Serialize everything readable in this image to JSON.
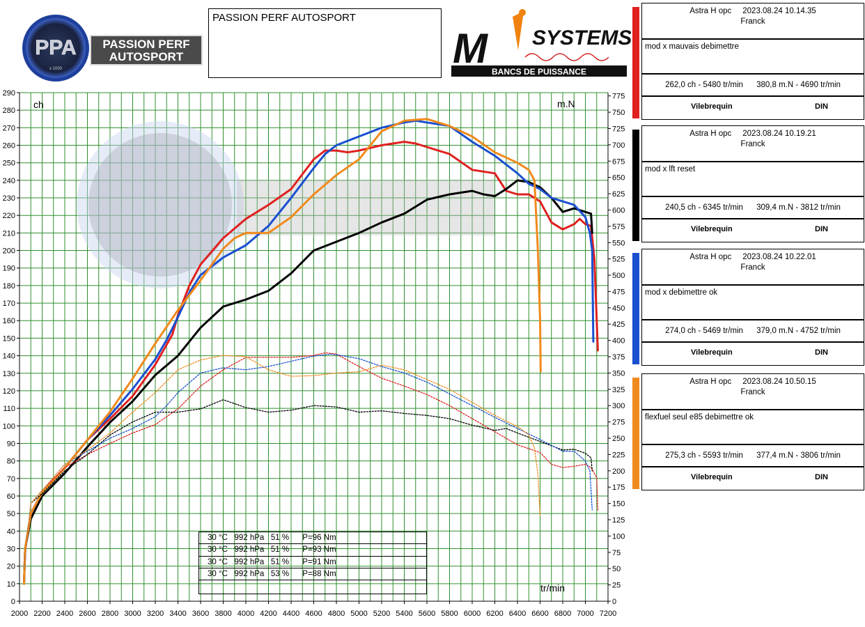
{
  "header": {
    "title_box_text": "PASSION PERF AUTOSPORT",
    "logo_left_text": [
      "PASSION PERF",
      "AUTOSPORT"
    ],
    "logo_left_abbrev": "PPA",
    "logo_left_gauge_unit": "x 1000",
    "logo_right_text": "SYSTEMS",
    "logo_right_letter": "M",
    "logo_right_sub": "BANCS DE PUISSANCE"
  },
  "legend": [
    {
      "color": "#e02020",
      "head1": "Astra H opc     2023.08.24 10.14.35",
      "head2": "Franck",
      "comment": "mod x mauvais debimettre",
      "values": "262,0 ch - 5480 tr/min      380,8 m.N - 4690 tr/min",
      "foot_left": "Vilebrequin",
      "foot_right": "DIN"
    },
    {
      "color": "#000000",
      "head1": "Astra H opc     2023.08.24 10.19.21",
      "head2": "Franck",
      "comment": "mod x lft reset",
      "values": "240,5 ch - 6345 tr/min      309,4 m.N - 3812 tr/min",
      "foot_left": "Vilebrequin",
      "foot_right": "DIN"
    },
    {
      "color": "#1a4fd0",
      "head1": "Astra H opc     2023.08.24 10.22.01",
      "head2": "Franck",
      "comment": "mod x debimettre ok",
      "values": "274,0 ch - 5469 tr/min      379,0 m.N - 4752 tr/min",
      "foot_left": "Vilebrequin",
      "foot_right": "DIN"
    },
    {
      "color": "#f08a1c",
      "head1": "Astra H opc     2023.08.24 10.50.15",
      "head2": "Franck",
      "comment": "flexfuel seul e85 debimettre ok",
      "values": "275,3 ch - 5593 tr/min      377,4 m.N - 3806 tr/min",
      "foot_left": "Vilebrequin",
      "foot_right": "DIN"
    }
  ],
  "conditions": [
    "30 °C   992 hPa   51 %      P=96 Nm",
    "30 °C   992 hPa   51 %      P=93 Nm",
    "30 °C   992 hPa   51 %      P=91 Nm",
    "30 °C   992 hPa   53 %      P=88 Nm"
  ],
  "chart_data": {
    "type": "line",
    "left_unit_label": "ch",
    "right_unit_label": "m.N",
    "x_unit_label": "tr/min",
    "xlim": [
      2000,
      7200
    ],
    "ylim_left": [
      0,
      290
    ],
    "ylim_right": [
      0,
      780
    ],
    "x_ticks": [
      2000,
      2200,
      2400,
      2600,
      2800,
      3000,
      3200,
      3400,
      3600,
      3800,
      4000,
      4200,
      4400,
      4600,
      4800,
      5000,
      5200,
      5400,
      5600,
      5800,
      6000,
      6200,
      6400,
      6600,
      6800,
      7000,
      7200
    ],
    "left_tick_step": 10,
    "right_tick_step": 25,
    "grid": true,
    "grid_color": "#2f8f2f",
    "series": [
      {
        "color": "#e02020",
        "style": "solid",
        "axis": "left",
        "points": [
          [
            2040,
            10
          ],
          [
            2050,
            30
          ],
          [
            2100,
            50
          ],
          [
            2200,
            62
          ],
          [
            2400,
            76
          ],
          [
            2600,
            92
          ],
          [
            2800,
            104
          ],
          [
            3000,
            117
          ],
          [
            3200,
            135
          ],
          [
            3350,
            152
          ],
          [
            3400,
            163
          ],
          [
            3500,
            180
          ],
          [
            3600,
            192
          ],
          [
            3800,
            207
          ],
          [
            4000,
            218
          ],
          [
            4200,
            226
          ],
          [
            4400,
            235
          ],
          [
            4600,
            252
          ],
          [
            4700,
            257
          ],
          [
            4800,
            257
          ],
          [
            4900,
            256
          ],
          [
            5000,
            257
          ],
          [
            5200,
            260
          ],
          [
            5400,
            262
          ],
          [
            5500,
            261
          ],
          [
            5600,
            259
          ],
          [
            5800,
            255
          ],
          [
            6000,
            246
          ],
          [
            6200,
            244
          ],
          [
            6300,
            234
          ],
          [
            6400,
            232
          ],
          [
            6500,
            232
          ],
          [
            6600,
            228
          ],
          [
            6700,
            216
          ],
          [
            6800,
            212
          ],
          [
            6900,
            215
          ],
          [
            6950,
            218
          ],
          [
            7000,
            215
          ],
          [
            7050,
            214
          ],
          [
            7080,
            195
          ],
          [
            7100,
            160
          ],
          [
            7110,
            143
          ]
        ]
      },
      {
        "color": "#000000",
        "style": "solid",
        "axis": "left",
        "points": [
          [
            2040,
            10
          ],
          [
            2050,
            30
          ],
          [
            2100,
            47
          ],
          [
            2200,
            60
          ],
          [
            2400,
            73
          ],
          [
            2600,
            88
          ],
          [
            2800,
            102
          ],
          [
            3000,
            114
          ],
          [
            3200,
            129
          ],
          [
            3400,
            140
          ],
          [
            3600,
            156
          ],
          [
            3800,
            168
          ],
          [
            4000,
            172
          ],
          [
            4200,
            177
          ],
          [
            4400,
            187
          ],
          [
            4600,
            200
          ],
          [
            4800,
            205
          ],
          [
            5000,
            210
          ],
          [
            5200,
            216
          ],
          [
            5400,
            221
          ],
          [
            5500,
            225
          ],
          [
            5600,
            229
          ],
          [
            5800,
            232
          ],
          [
            6000,
            234
          ],
          [
            6100,
            232
          ],
          [
            6200,
            231
          ],
          [
            6300,
            235
          ],
          [
            6400,
            240
          ],
          [
            6500,
            239
          ],
          [
            6600,
            236
          ],
          [
            6700,
            230
          ],
          [
            6800,
            222
          ],
          [
            6900,
            224
          ],
          [
            7000,
            222
          ],
          [
            7050,
            221
          ],
          [
            7060,
            210
          ]
        ]
      },
      {
        "color": "#1a4fd0",
        "style": "solid",
        "axis": "left",
        "points": [
          [
            2040,
            10
          ],
          [
            2050,
            30
          ],
          [
            2100,
            50
          ],
          [
            2200,
            62
          ],
          [
            2400,
            76
          ],
          [
            2600,
            92
          ],
          [
            2800,
            106
          ],
          [
            3000,
            121
          ],
          [
            3200,
            138
          ],
          [
            3300,
            149
          ],
          [
            3400,
            162
          ],
          [
            3500,
            176
          ],
          [
            3600,
            186
          ],
          [
            3800,
            196
          ],
          [
            4000,
            203
          ],
          [
            4200,
            214
          ],
          [
            4400,
            230
          ],
          [
            4600,
            247
          ],
          [
            4700,
            255
          ],
          [
            4800,
            260
          ],
          [
            5000,
            265
          ],
          [
            5200,
            270
          ],
          [
            5400,
            273
          ],
          [
            5500,
            274
          ],
          [
            5600,
            273
          ],
          [
            5800,
            271
          ],
          [
            6000,
            262
          ],
          [
            6200,
            254
          ],
          [
            6400,
            244
          ],
          [
            6500,
            238
          ],
          [
            6600,
            235
          ],
          [
            6700,
            230
          ],
          [
            6800,
            228
          ],
          [
            6900,
            226
          ],
          [
            7000,
            219
          ],
          [
            7040,
            210
          ],
          [
            7060,
            200
          ],
          [
            7070,
            148
          ]
        ]
      },
      {
        "color": "#f08a1c",
        "style": "solid",
        "axis": "left",
        "points": [
          [
            2040,
            10
          ],
          [
            2050,
            30
          ],
          [
            2100,
            50
          ],
          [
            2200,
            62
          ],
          [
            2400,
            76
          ],
          [
            2600,
            92
          ],
          [
            2800,
            108
          ],
          [
            3000,
            127
          ],
          [
            3200,
            147
          ],
          [
            3400,
            166
          ],
          [
            3600,
            183
          ],
          [
            3800,
            201
          ],
          [
            3900,
            207
          ],
          [
            4000,
            210
          ],
          [
            4200,
            210
          ],
          [
            4400,
            219
          ],
          [
            4600,
            232
          ],
          [
            4800,
            243
          ],
          [
            5000,
            252
          ],
          [
            5200,
            268
          ],
          [
            5400,
            274
          ],
          [
            5600,
            275
          ],
          [
            5800,
            271
          ],
          [
            6000,
            265
          ],
          [
            6200,
            256
          ],
          [
            6400,
            250
          ],
          [
            6500,
            246
          ],
          [
            6550,
            240
          ],
          [
            6580,
            200
          ],
          [
            6600,
            160
          ],
          [
            6605,
            131
          ]
        ]
      },
      {
        "color": "#e02020",
        "style": "dotted",
        "axis": "right",
        "points": [
          [
            2040,
            50
          ],
          [
            2100,
            150
          ],
          [
            2200,
            170
          ],
          [
            2400,
            205
          ],
          [
            2600,
            225
          ],
          [
            2800,
            242
          ],
          [
            3000,
            258
          ],
          [
            3200,
            271
          ],
          [
            3400,
            295
          ],
          [
            3600,
            330
          ],
          [
            3800,
            355
          ],
          [
            4000,
            374
          ],
          [
            4200,
            374
          ],
          [
            4400,
            374
          ],
          [
            4600,
            377
          ],
          [
            4700,
            381
          ],
          [
            4800,
            379
          ],
          [
            5000,
            360
          ],
          [
            5200,
            342
          ],
          [
            5400,
            330
          ],
          [
            5600,
            317
          ],
          [
            5800,
            300
          ],
          [
            6000,
            280
          ],
          [
            6200,
            260
          ],
          [
            6400,
            240
          ],
          [
            6600,
            228
          ],
          [
            6700,
            210
          ],
          [
            6800,
            205
          ],
          [
            6900,
            207
          ],
          [
            7000,
            210
          ],
          [
            7050,
            205
          ],
          [
            7100,
            190
          ],
          [
            7110,
            140
          ]
        ]
      },
      {
        "color": "#000000",
        "style": "dotted",
        "axis": "right",
        "points": [
          [
            2040,
            50
          ],
          [
            2100,
            150
          ],
          [
            2200,
            165
          ],
          [
            2400,
            200
          ],
          [
            2600,
            225
          ],
          [
            2800,
            255
          ],
          [
            3000,
            275
          ],
          [
            3200,
            290
          ],
          [
            3400,
            290
          ],
          [
            3600,
            295
          ],
          [
            3800,
            309
          ],
          [
            4000,
            297
          ],
          [
            4200,
            290
          ],
          [
            4400,
            293
          ],
          [
            4600,
            300
          ],
          [
            4800,
            298
          ],
          [
            5000,
            290
          ],
          [
            5200,
            292
          ],
          [
            5400,
            288
          ],
          [
            5600,
            285
          ],
          [
            5800,
            280
          ],
          [
            6000,
            270
          ],
          [
            6200,
            262
          ],
          [
            6300,
            265
          ],
          [
            6400,
            258
          ],
          [
            6600,
            245
          ],
          [
            6800,
            232
          ],
          [
            6900,
            233
          ],
          [
            7000,
            227
          ],
          [
            7050,
            220
          ],
          [
            7060,
            200
          ]
        ]
      },
      {
        "color": "#1a4fd0",
        "style": "dotted",
        "axis": "right",
        "points": [
          [
            2040,
            50
          ],
          [
            2100,
            150
          ],
          [
            2200,
            170
          ],
          [
            2400,
            210
          ],
          [
            2600,
            230
          ],
          [
            2800,
            250
          ],
          [
            3000,
            265
          ],
          [
            3200,
            283
          ],
          [
            3300,
            300
          ],
          [
            3400,
            320
          ],
          [
            3600,
            350
          ],
          [
            3800,
            358
          ],
          [
            4000,
            355
          ],
          [
            4200,
            360
          ],
          [
            4400,
            368
          ],
          [
            4600,
            376
          ],
          [
            4750,
            379
          ],
          [
            4800,
            378
          ],
          [
            5000,
            372
          ],
          [
            5200,
            360
          ],
          [
            5400,
            350
          ],
          [
            5600,
            336
          ],
          [
            5800,
            318
          ],
          [
            6000,
            300
          ],
          [
            6200,
            282
          ],
          [
            6400,
            265
          ],
          [
            6600,
            248
          ],
          [
            6800,
            230
          ],
          [
            6900,
            230
          ],
          [
            7000,
            215
          ],
          [
            7040,
            200
          ],
          [
            7060,
            140
          ]
        ]
      },
      {
        "color": "#f08a1c",
        "style": "dotted",
        "axis": "right",
        "points": [
          [
            2040,
            50
          ],
          [
            2100,
            150
          ],
          [
            2200,
            170
          ],
          [
            2400,
            210
          ],
          [
            2600,
            232
          ],
          [
            2800,
            258
          ],
          [
            3000,
            290
          ],
          [
            3200,
            320
          ],
          [
            3400,
            355
          ],
          [
            3600,
            370
          ],
          [
            3800,
            377
          ],
          [
            4000,
            375
          ],
          [
            4200,
            355
          ],
          [
            4400,
            345
          ],
          [
            4600,
            346
          ],
          [
            4800,
            350
          ],
          [
            5000,
            352
          ],
          [
            5200,
            362
          ],
          [
            5400,
            355
          ],
          [
            5600,
            340
          ],
          [
            5800,
            325
          ],
          [
            6000,
            305
          ],
          [
            6200,
            285
          ],
          [
            6400,
            268
          ],
          [
            6500,
            255
          ],
          [
            6550,
            235
          ],
          [
            6580,
            195
          ],
          [
            6600,
            130
          ]
        ]
      }
    ]
  }
}
